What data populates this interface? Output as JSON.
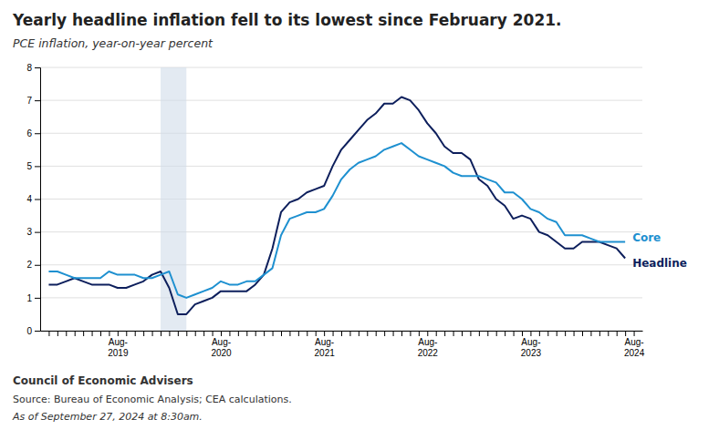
{
  "chart_data": {
    "type": "line",
    "title": "Yearly headline inflation fell to its lowest since February 2021.",
    "subtitle": "PCE inflation, year-on-year percent",
    "annotations": [
      "Council of Economic Advisers",
      "Source: Bureau of Economic Analysis; CEA calculations.",
      "As of September 27, 2024 at 8:30am."
    ],
    "categories": [
      null,
      null,
      null,
      null,
      null,
      null,
      null,
      null,
      "Aug-\n2019",
      null,
      null,
      null,
      null,
      null,
      null,
      null,
      null,
      null,
      null,
      null,
      "Aug-\n2020",
      null,
      null,
      null,
      null,
      null,
      null,
      null,
      null,
      null,
      null,
      null,
      "Aug-\n2021",
      null,
      null,
      null,
      null,
      null,
      null,
      null,
      null,
      null,
      null,
      null,
      "Aug-\n2022",
      null,
      null,
      null,
      null,
      null,
      null,
      null,
      null,
      null,
      null,
      null,
      "Aug-\n2023",
      null,
      null,
      null,
      null,
      null,
      null,
      null,
      null,
      null,
      null,
      null,
      "Aug-\n2024"
    ],
    "series": [
      {
        "name": "Headline",
        "color": "#0d1f5c",
        "values": [
          1.4,
          1.4,
          1.5,
          1.6,
          1.5,
          1.4,
          1.4,
          1.4,
          1.3,
          1.3,
          1.4,
          1.5,
          1.7,
          1.8,
          1.3,
          0.5,
          0.5,
          0.8,
          0.9,
          1.0,
          1.2,
          1.2,
          1.2,
          1.2,
          1.4,
          1.7,
          2.5,
          3.6,
          3.9,
          4.0,
          4.2,
          4.3,
          4.4,
          5.0,
          5.5,
          5.8,
          6.1,
          6.4,
          6.6,
          6.9,
          6.9,
          7.1,
          7.0,
          6.7,
          6.3,
          6.0,
          5.6,
          5.4,
          5.4,
          5.2,
          4.6,
          4.4,
          4.0,
          3.8,
          3.4,
          3.5,
          3.4,
          3.0,
          2.9,
          2.7,
          2.5,
          2.5,
          2.7,
          2.7,
          2.7,
          2.6,
          2.5,
          2.2,
          null
        ]
      },
      {
        "name": "Core",
        "color": "#1e90d0",
        "values": [
          1.8,
          1.8,
          1.7,
          1.6,
          1.6,
          1.6,
          1.6,
          1.8,
          1.7,
          1.7,
          1.7,
          1.6,
          1.6,
          1.7,
          1.8,
          1.1,
          1.0,
          1.1,
          1.2,
          1.3,
          1.5,
          1.4,
          1.4,
          1.5,
          1.5,
          1.7,
          1.9,
          2.9,
          3.4,
          3.5,
          3.6,
          3.6,
          3.7,
          4.1,
          4.6,
          4.9,
          5.1,
          5.2,
          5.3,
          5.5,
          5.6,
          5.7,
          5.5,
          5.3,
          5.2,
          5.1,
          5.0,
          4.8,
          4.7,
          4.7,
          4.7,
          4.6,
          4.5,
          4.2,
          4.2,
          4.0,
          3.7,
          3.6,
          3.4,
          3.3,
          2.9,
          2.9,
          2.9,
          2.8,
          2.7,
          2.7,
          2.7,
          2.7,
          null
        ]
      }
    ],
    "shaded_range": [
      13,
      16
    ],
    "ylim": [
      0,
      8
    ],
    "yticks": [
      0,
      1,
      2,
      3,
      4,
      5,
      6,
      7,
      8
    ],
    "grid": true
  }
}
